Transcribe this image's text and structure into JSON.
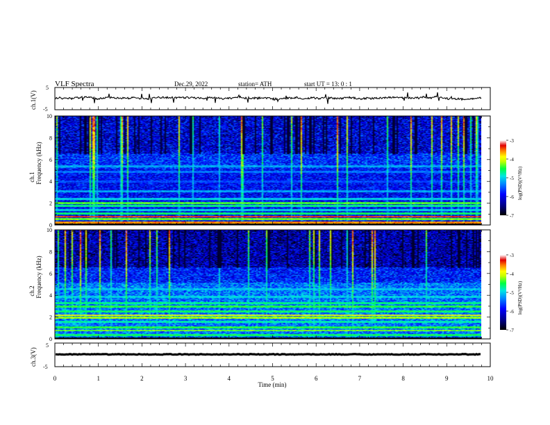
{
  "header": {
    "title": "VLF  Spectra",
    "date": "Dec.29, 2022",
    "station": "station= ATH",
    "start": "start  UT  =    13: 0   : 1"
  },
  "chart_data": [
    {
      "type": "line",
      "ylabel": "ch.1(V)",
      "ylim": [
        -5,
        5
      ],
      "yticks": [
        "5",
        "-5"
      ],
      "xlim": [
        0,
        10
      ],
      "description": "noisy waveform near 0 V with spikes",
      "level_v": 0.3,
      "line_color": "#000000"
    },
    {
      "type": "heatmap",
      "ylabel": "ch.1\nFrequency  (kHz)",
      "ylim": [
        0,
        10
      ],
      "yticks": [
        "0",
        "2",
        "4",
        "6",
        "8",
        "10"
      ],
      "xlim": [
        0,
        10
      ],
      "data_end_min": 9.8,
      "colorbar": {
        "label": "log(PSD)(V²/Hz)",
        "range": [
          -7,
          -3
        ],
        "ticks": [
          "-3",
          "-4",
          "-5",
          "-6",
          "-7"
        ]
      },
      "bands_khz": [
        {
          "f": 0.1,
          "level": -7
        },
        {
          "f": 0.25,
          "level": -3.6
        },
        {
          "f": 0.55,
          "level": -4.3
        },
        {
          "f": 0.8,
          "level": -3.4
        },
        {
          "f": 1.1,
          "level": -4.6
        },
        {
          "f": 1.4,
          "level": -5.0
        },
        {
          "f": 1.8,
          "level": -4.7
        },
        {
          "f": 2.05,
          "level": -4.4
        },
        {
          "f": 2.4,
          "level": -5.0
        },
        {
          "f": 3.1,
          "level": -5.2
        },
        {
          "f": 4.0,
          "level": -5.6
        },
        {
          "f": 4.9,
          "level": -5.4
        },
        {
          "f": 5.4,
          "level": -5.2
        }
      ]
    },
    {
      "type": "heatmap",
      "ylabel": "ch.2\nFrequency  (kHz)",
      "ylim": [
        0,
        10
      ],
      "yticks": [
        "0",
        "2",
        "4",
        "6",
        "8",
        "10"
      ],
      "xlim": [
        0,
        10
      ],
      "data_end_min": 9.8,
      "colorbar": {
        "label": "log(PSD)(V²/Hz)",
        "range": [
          -7,
          -3
        ],
        "ticks": [
          "-3",
          "-4",
          "-5",
          "-6",
          "-7"
        ]
      },
      "bands_khz": [
        {
          "f": 0.1,
          "level": -7
        },
        {
          "f": 0.4,
          "level": -4.6
        },
        {
          "f": 0.8,
          "level": -4.3
        },
        {
          "f": 1.1,
          "level": -4.5
        },
        {
          "f": 1.6,
          "level": -4.8
        },
        {
          "f": 1.95,
          "level": -4.2
        },
        {
          "f": 2.2,
          "level": -4.0
        },
        {
          "f": 2.55,
          "level": -4.6
        },
        {
          "f": 3.0,
          "level": -4.5
        },
        {
          "f": 3.3,
          "level": -4.7
        },
        {
          "f": 3.9,
          "level": -5.0
        },
        {
          "f": 4.6,
          "level": -5.1
        }
      ]
    },
    {
      "type": "line",
      "ylabel": "ch.3(V)",
      "ylim": [
        -5,
        5
      ],
      "yticks": [
        "5",
        "-5"
      ],
      "xlim": [
        0,
        10
      ],
      "xlabel": "Time  (min)",
      "xticks": [
        "0",
        "1",
        "2",
        "3",
        "4",
        "5",
        "6",
        "7",
        "8",
        "9",
        "10"
      ],
      "level_v": 0.2,
      "line_color": "#000000"
    }
  ],
  "colors": {
    "colormap": [
      "#000000",
      "#00007f",
      "#0000ff",
      "#0088ff",
      "#00e5e5",
      "#00ff40",
      "#c8ff00",
      "#ffff00",
      "#ff8000",
      "#e00000",
      "#ffffff"
    ]
  }
}
